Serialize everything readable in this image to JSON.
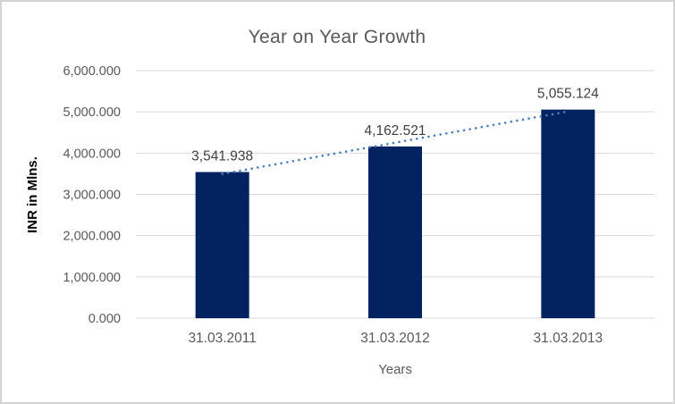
{
  "window": {
    "background_color": "#ffffff",
    "border_color": "#d4d4d4"
  },
  "chart_data": {
    "type": "bar",
    "title": "Year on Year Growth",
    "xlabel": "Years",
    "ylabel": "INR in Mlns.",
    "categories": [
      "31.03.2011",
      "31.03.2012",
      "31.03.2013"
    ],
    "values": [
      3541.938,
      4162.521,
      5055.124
    ],
    "data_labels": [
      "3,541.938",
      "4,162.521",
      "5,055.124"
    ],
    "y_tick_labels": [
      "0.000",
      "1,000.000",
      "2,000.000",
      "3,000.000",
      "4,000.000",
      "5,000.000",
      "6,000.000"
    ],
    "ylim": [
      0,
      6000
    ],
    "y_tick_step": 1000,
    "grid": true,
    "legend": "none",
    "trendline": {
      "type": "linear",
      "style": "dotted",
      "color": "#4a7ec0"
    },
    "colors": {
      "bar": "#02235f",
      "gridline": "#d9d9d9",
      "axis_line": "#d9d9d9",
      "title_text": "#595959",
      "tick_text": "#595959",
      "value_label_text": "#404040"
    }
  }
}
